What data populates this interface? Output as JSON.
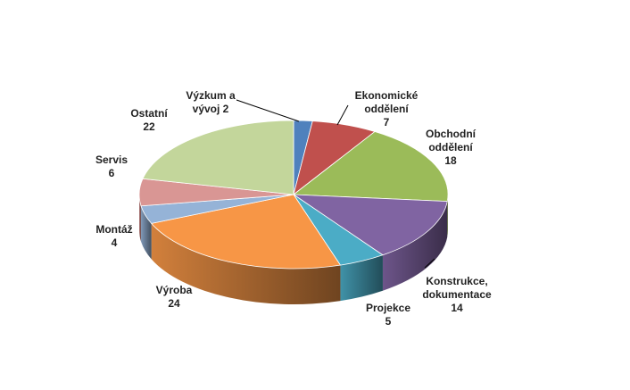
{
  "chart_data": {
    "type": "pie3d",
    "categories": [
      "Výzkum a vývoj",
      "Ekonomické oddělení",
      "Obchodní oddělení",
      "Konstrukce, dokumentace",
      "Projekce",
      "Výroba",
      "Montáž",
      "Servis",
      "Ostatní"
    ],
    "values": [
      2,
      7,
      18,
      14,
      5,
      24,
      4,
      6,
      22
    ],
    "colors": [
      "#4f81bd",
      "#c0504d",
      "#9bbb59",
      "#8064a2",
      "#4bacc6",
      "#f79646",
      "#95b3d7",
      "#d99694",
      "#c3d69b"
    ]
  }
}
